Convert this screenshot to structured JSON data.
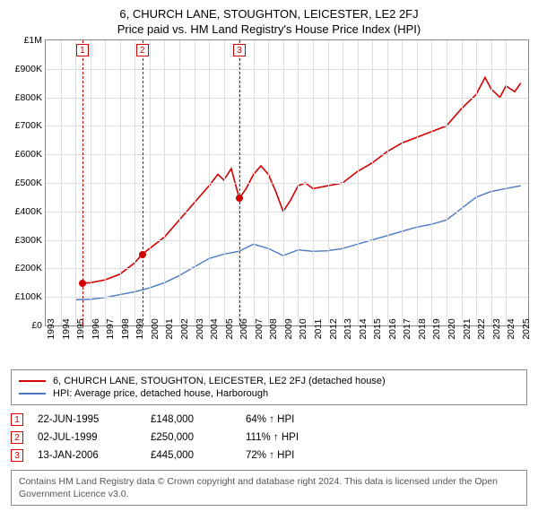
{
  "title": {
    "line1": "6, CHURCH LANE, STOUGHTON, LEICESTER, LE2 2FJ",
    "line2": "Price paid vs. HM Land Registry's House Price Index (HPI)"
  },
  "chart": {
    "type": "line",
    "background_color": "#ffffff",
    "grid_color": "#dddddd",
    "border_color": "#888888",
    "xlim": [
      1993,
      2025.5
    ],
    "ylim": [
      0,
      1000000
    ],
    "ytick_step": 100000,
    "ytick_labels": [
      "£0",
      "£100K",
      "£200K",
      "£300K",
      "£400K",
      "£500K",
      "£600K",
      "£700K",
      "£800K",
      "£900K",
      "£1M"
    ],
    "xtick_step": 1,
    "xtick_labels": [
      "1993",
      "1994",
      "1995",
      "1996",
      "1997",
      "1998",
      "1999",
      "2000",
      "2001",
      "2002",
      "2003",
      "2004",
      "2005",
      "2006",
      "2007",
      "2008",
      "2009",
      "2010",
      "2011",
      "2012",
      "2013",
      "2014",
      "2015",
      "2016",
      "2017",
      "2018",
      "2019",
      "2020",
      "2021",
      "2022",
      "2023",
      "2024",
      "2025"
    ],
    "label_fontsize": 10.5,
    "series": [
      {
        "name": "property",
        "color": "#d00000",
        "width": 1.6,
        "points": [
          [
            1995.47,
            148000
          ],
          [
            1996.0,
            150000
          ],
          [
            1997.0,
            160000
          ],
          [
            1998.0,
            180000
          ],
          [
            1999.0,
            220000
          ],
          [
            1999.5,
            250000
          ],
          [
            2000.0,
            270000
          ],
          [
            2001.0,
            310000
          ],
          [
            2002.0,
            370000
          ],
          [
            2003.0,
            430000
          ],
          [
            2004.0,
            490000
          ],
          [
            2004.6,
            530000
          ],
          [
            2005.0,
            510000
          ],
          [
            2005.5,
            550000
          ],
          [
            2006.04,
            445000
          ],
          [
            2006.5,
            480000
          ],
          [
            2007.0,
            530000
          ],
          [
            2007.5,
            560000
          ],
          [
            2008.0,
            530000
          ],
          [
            2008.5,
            470000
          ],
          [
            2009.0,
            400000
          ],
          [
            2009.5,
            440000
          ],
          [
            2010.0,
            490000
          ],
          [
            2010.5,
            500000
          ],
          [
            2011.0,
            480000
          ],
          [
            2012.0,
            490000
          ],
          [
            2013.0,
            500000
          ],
          [
            2014.0,
            540000
          ],
          [
            2015.0,
            570000
          ],
          [
            2016.0,
            610000
          ],
          [
            2017.0,
            640000
          ],
          [
            2018.0,
            660000
          ],
          [
            2019.0,
            680000
          ],
          [
            2020.0,
            700000
          ],
          [
            2021.0,
            760000
          ],
          [
            2022.0,
            810000
          ],
          [
            2022.6,
            870000
          ],
          [
            2023.0,
            830000
          ],
          [
            2023.6,
            800000
          ],
          [
            2024.0,
            840000
          ],
          [
            2024.6,
            820000
          ],
          [
            2025.0,
            850000
          ]
        ]
      },
      {
        "name": "hpi",
        "color": "#4a78c4",
        "width": 1.4,
        "points": [
          [
            1995.0,
            90000
          ],
          [
            1996.0,
            92000
          ],
          [
            1997.0,
            98000
          ],
          [
            1998.0,
            108000
          ],
          [
            1999.0,
            118000
          ],
          [
            2000.0,
            132000
          ],
          [
            2001.0,
            150000
          ],
          [
            2002.0,
            175000
          ],
          [
            2003.0,
            205000
          ],
          [
            2004.0,
            235000
          ],
          [
            2005.0,
            250000
          ],
          [
            2006.0,
            260000
          ],
          [
            2007.0,
            285000
          ],
          [
            2008.0,
            270000
          ],
          [
            2009.0,
            245000
          ],
          [
            2010.0,
            265000
          ],
          [
            2011.0,
            260000
          ],
          [
            2012.0,
            262000
          ],
          [
            2013.0,
            270000
          ],
          [
            2014.0,
            285000
          ],
          [
            2015.0,
            300000
          ],
          [
            2016.0,
            315000
          ],
          [
            2017.0,
            330000
          ],
          [
            2018.0,
            345000
          ],
          [
            2019.0,
            355000
          ],
          [
            2020.0,
            370000
          ],
          [
            2021.0,
            410000
          ],
          [
            2022.0,
            450000
          ],
          [
            2023.0,
            470000
          ],
          [
            2024.0,
            480000
          ],
          [
            2025.0,
            490000
          ]
        ]
      }
    ],
    "event_lines": [
      {
        "x": 1995.47,
        "label": "1",
        "dash_color": "#d00000"
      },
      {
        "x": 1999.5,
        "label": "2",
        "dash_color": "#d00000"
      },
      {
        "x": 2006.04,
        "label": "3",
        "dash_color": "#d00000"
      }
    ],
    "sale_markers": [
      {
        "x": 1995.47,
        "y": 148000,
        "color": "#d00000"
      },
      {
        "x": 1999.5,
        "y": 250000,
        "color": "#d00000"
      },
      {
        "x": 2006.04,
        "y": 445000,
        "color": "#d00000"
      }
    ]
  },
  "legend": {
    "items": [
      {
        "color": "#d00000",
        "label": "6, CHURCH LANE, STOUGHTON, LEICESTER, LE2 2FJ (detached house)"
      },
      {
        "color": "#4a78c4",
        "label": "HPI: Average price, detached house, Harborough"
      }
    ]
  },
  "sales": [
    {
      "marker": "1",
      "date": "22-JUN-1995",
      "price": "£148,000",
      "pct": "64% ↑ HPI"
    },
    {
      "marker": "2",
      "date": "02-JUL-1999",
      "price": "£250,000",
      "pct": "111% ↑ HPI"
    },
    {
      "marker": "3",
      "date": "13-JAN-2006",
      "price": "£445,000",
      "pct": "72% ↑ HPI"
    }
  ],
  "footnote": "Contains HM Land Registry data © Crown copyright and database right 2024. This data is licensed under the Open Government Licence v3.0."
}
